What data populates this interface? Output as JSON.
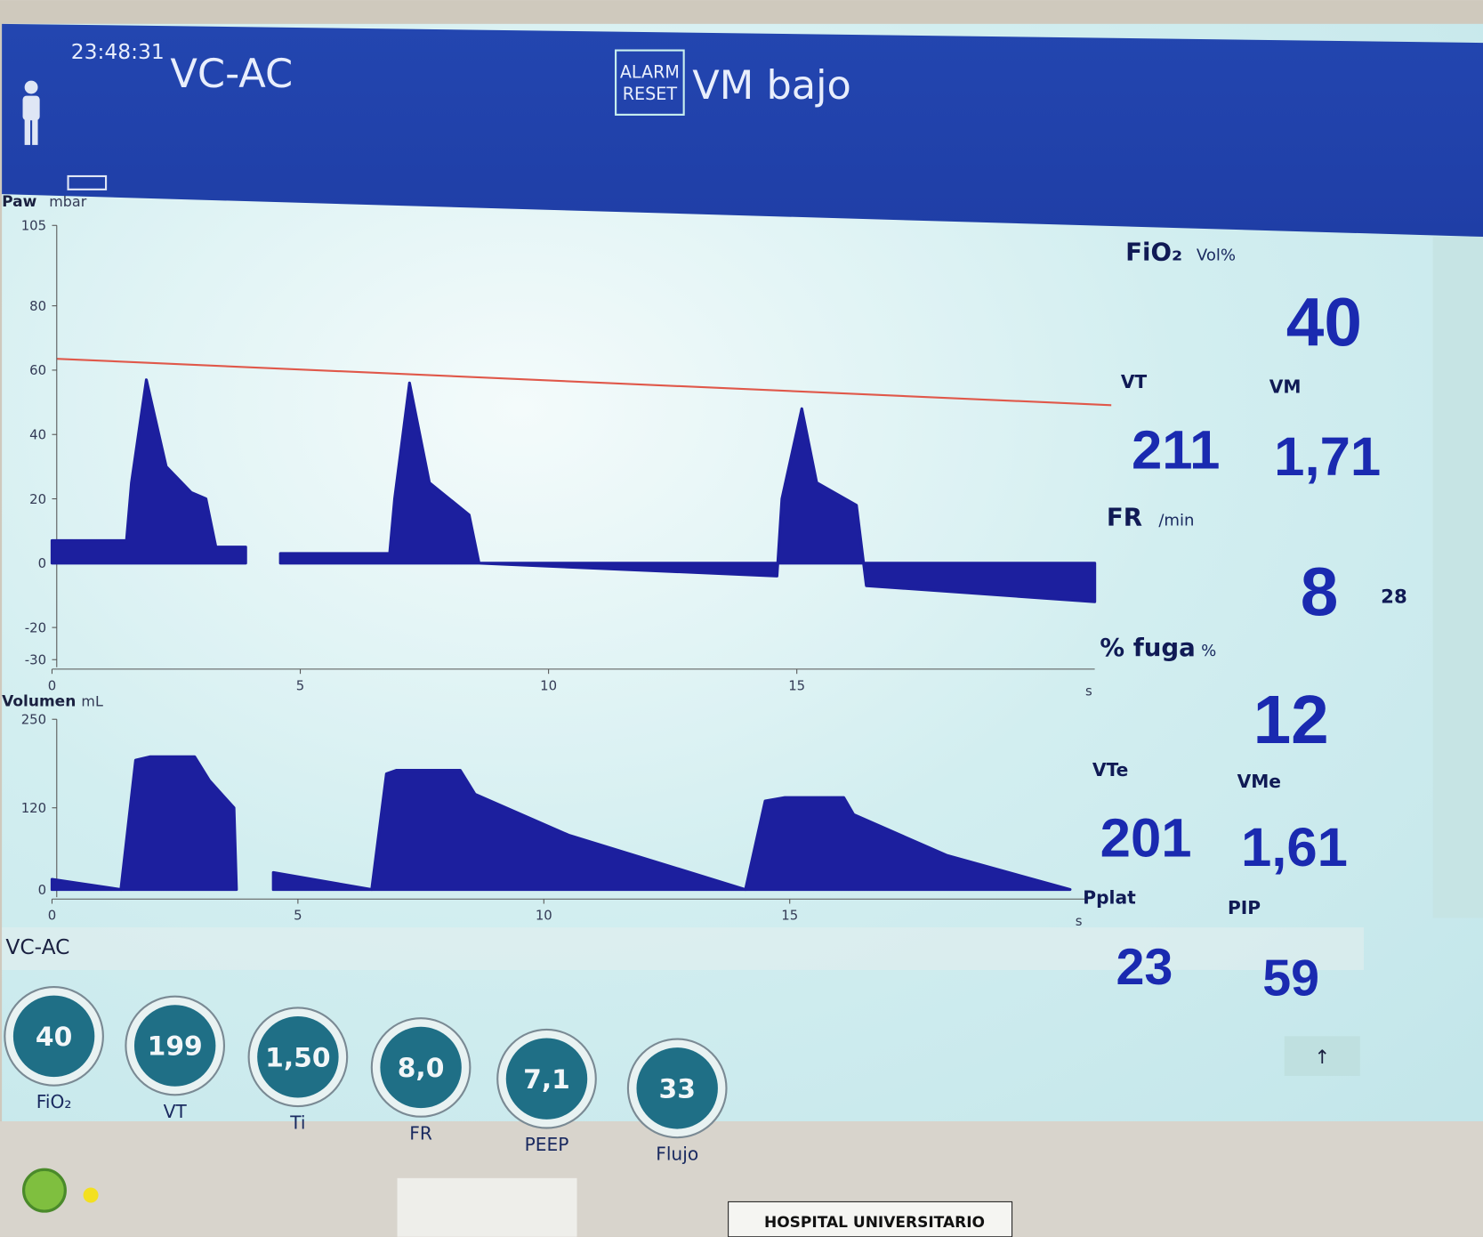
{
  "header": {
    "time": "23:48:31",
    "mode": "VC-AC",
    "alarm_button": [
      "ALARM",
      "RESET"
    ],
    "alarm": "VM bajo"
  },
  "chart_data": [
    {
      "type": "area",
      "y_label": "Paw",
      "y_unit": "mbar",
      "x_unit": "s",
      "color": "#1c1f9e",
      "x": [
        0,
        1.5,
        1.6,
        1.9,
        2.3,
        2.8,
        3.1,
        3.3,
        3.9,
        4.2,
        4.6,
        6.8,
        6.9,
        7.2,
        7.6,
        8.4,
        8.6,
        14.6,
        14.7,
        15.1,
        15.4,
        16.2,
        16.4,
        21
      ],
      "values": [
        7,
        7,
        25,
        57,
        30,
        22,
        20,
        5,
        5,
        null,
        3,
        3,
        20,
        56,
        25,
        15,
        0,
        -4,
        20,
        48,
        25,
        18,
        -7,
        -12
      ],
      "xlim": [
        0,
        21
      ],
      "xticks": [
        0,
        5,
        10,
        15
      ],
      "ylim": [
        -30,
        105
      ],
      "yticks": [
        105,
        80,
        60,
        40,
        20,
        0,
        -20,
        -30
      ]
    },
    {
      "type": "area",
      "y_label": "Volumen",
      "y_unit": "mL",
      "x_unit": "s",
      "color": "#1c1f9e",
      "x": [
        0,
        1.4,
        1.7,
        2,
        2.9,
        3.2,
        3.7,
        3.75,
        4.2,
        4.5,
        6.5,
        6.8,
        7,
        8.3,
        8.6,
        10.5,
        14.1,
        14.5,
        14.9,
        16.1,
        16.3,
        18.2,
        20.7
      ],
      "values": [
        15,
        0,
        190,
        195,
        195,
        160,
        120,
        0,
        null,
        25,
        0,
        170,
        175,
        175,
        140,
        80,
        0,
        130,
        135,
        135,
        110,
        50,
        0
      ],
      "xlim": [
        0,
        21
      ],
      "xticks": [
        0,
        5,
        10,
        15
      ],
      "ylim": [
        0,
        250
      ],
      "yticks": [
        250,
        120,
        0
      ]
    }
  ],
  "measurements": [
    {
      "label": "FiO₂",
      "unit": "Vol%",
      "value": "40"
    },
    {
      "label": "VT",
      "value": "211"
    },
    {
      "label": "VM",
      "value": "1,71"
    },
    {
      "label": "FR",
      "unit": "/min",
      "value": "8",
      "extra": "28"
    },
    {
      "label": "% fuga",
      "unit": "%",
      "value": "12"
    },
    {
      "label": "VTe",
      "value": "201"
    },
    {
      "label": "VMe",
      "value": "1,61"
    },
    {
      "label": "Pplat",
      "value": "23"
    },
    {
      "label": "PIP",
      "value": "59"
    }
  ],
  "settings": {
    "mode": "VC-AC",
    "knobs": [
      {
        "label": "FiO₂",
        "value": "40"
      },
      {
        "label": "VT",
        "value": "199"
      },
      {
        "label": "Ti",
        "value": "1,50"
      },
      {
        "label": "FR",
        "value": "8,0"
      },
      {
        "label": "PEEP",
        "value": "7,1"
      },
      {
        "label": "Flujo",
        "value": "33"
      }
    ]
  },
  "button": "↑",
  "footer": "HOSPITAL UNIVERSITARIO"
}
